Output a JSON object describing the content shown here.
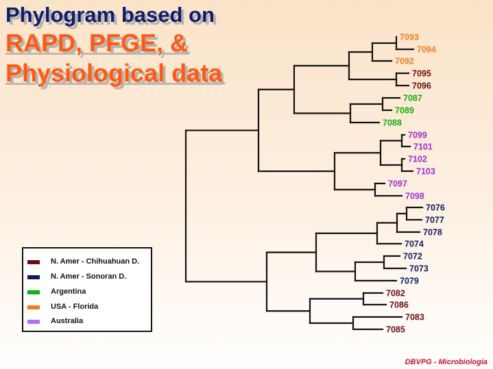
{
  "title": {
    "line1": "Phylogram based on",
    "line2": "RAPD, PFGE, &",
    "line3": "Physiological data"
  },
  "colors": {
    "chihuahuan": "#6b0d0d",
    "sonoran": "#0d1a5c",
    "argentina": "#11b00f",
    "florida": "#f07d20",
    "australia": "#a02ed0"
  },
  "legend": [
    {
      "label": "N. Amer - Chihuahuan  D.",
      "color": "#6b0d0d"
    },
    {
      "label": "N. Amer - Sonoran D.",
      "color": "#0d1a5c"
    },
    {
      "label": "Argentina",
      "color": "#11b00f"
    },
    {
      "label": "USA -  Florida",
      "color": "#f07d20"
    },
    {
      "label": "Australia",
      "color": "#b070f0"
    }
  ],
  "leaves": [
    {
      "label": "7093",
      "group": "florida"
    },
    {
      "label": "7094",
      "group": "florida"
    },
    {
      "label": "7092",
      "group": "florida"
    },
    {
      "label": "7095",
      "group": "chihuahuan"
    },
    {
      "label": "7096",
      "group": "chihuahuan"
    },
    {
      "label": "7087",
      "group": "argentina"
    },
    {
      "label": "7089",
      "group": "argentina"
    },
    {
      "label": "7088",
      "group": "argentina"
    },
    {
      "label": "7099",
      "group": "australia"
    },
    {
      "label": "7101",
      "group": "australia"
    },
    {
      "label": "7102",
      "group": "australia"
    },
    {
      "label": "7103",
      "group": "australia"
    },
    {
      "label": "7097",
      "group": "australia"
    },
    {
      "label": "7098",
      "group": "australia"
    },
    {
      "label": "7076",
      "group": "sonoran"
    },
    {
      "label": "7077",
      "group": "sonoran"
    },
    {
      "label": "7078",
      "group": "sonoran"
    },
    {
      "label": "7074",
      "group": "sonoran"
    },
    {
      "label": "7072",
      "group": "sonoran"
    },
    {
      "label": "7073",
      "group": "sonoran"
    },
    {
      "label": "7079",
      "group": "sonoran"
    },
    {
      "label": "7082",
      "group": "chihuahuan"
    },
    {
      "label": "7086",
      "group": "chihuahuan"
    },
    {
      "label": "7083",
      "group": "chihuahuan"
    },
    {
      "label": "7085",
      "group": "chihuahuan"
    }
  ],
  "credit": "DBVPG - Microbiologia"
}
